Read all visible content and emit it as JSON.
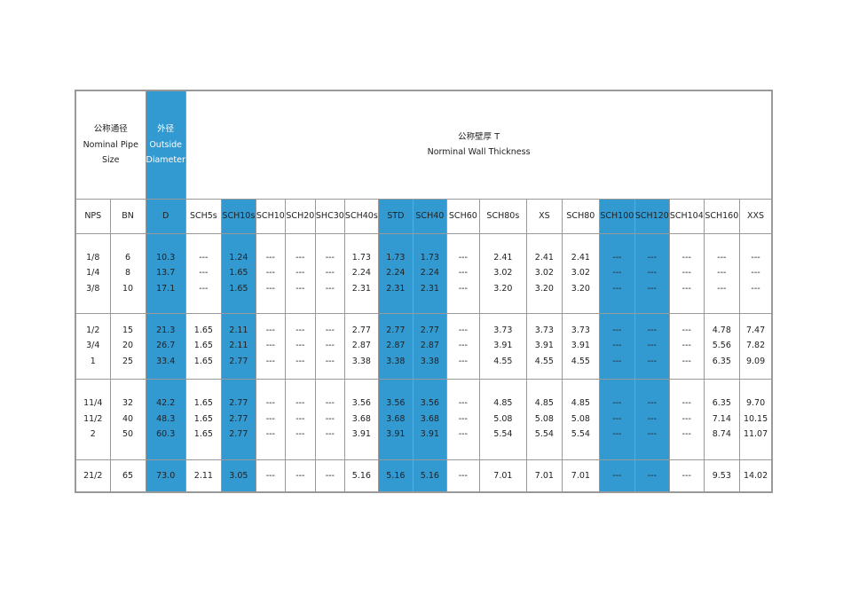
{
  "header": {
    "nominal_size": "公称通径\nNominal Pipe\nSize",
    "outside_diameter": "外径\nOutside\nDiameter",
    "wall_thickness": "公称壁厚 T\nNorminal Wall Thickness"
  },
  "columns": [
    "NPS",
    "BN",
    "D",
    "SCH5s",
    "SCH10s",
    "SCH10",
    "SCH20",
    "SHC30",
    "SCH40s",
    "STD",
    "SCH40",
    "SCH60",
    "SCH80s",
    "XS",
    "SCH80",
    "SCH100",
    "SCH120",
    "SCH104",
    "SCH160",
    "XXS"
  ],
  "rows": [
    [
      "1/8\n1/4\n3/8",
      "6\n8\n10",
      "10.3\n13.7\n17.1",
      "---\n---\n---",
      "1.24\n1.65\n1.65",
      "---\n---\n---",
      "---\n---\n---",
      "---\n---\n---",
      "1.73\n2.24\n2.31",
      "1.73\n2.24\n2.31",
      "1.73\n2.24\n2.31",
      "---\n---\n---",
      "2.41\n3.02\n3.20",
      "2.41\n3.02\n3.20",
      "2.41\n3.02\n3.20",
      "---\n---\n---",
      "---\n---\n---",
      "---\n---\n---",
      "---\n---\n---",
      "---\n---\n---"
    ],
    [
      "1/2\n3/4\n1",
      "15\n20\n25",
      "21.3\n26.7\n33.4",
      "1.65\n1.65\n1.65",
      "2.11\n2.11\n2.77",
      "---\n---\n---",
      "---\n---\n---",
      "---\n---\n---",
      "2.77\n2.87\n3.38",
      "2.77\n2.87\n3.38",
      "2.77\n2.87\n3.38",
      "---\n---\n---",
      "3.73\n3.91\n4.55",
      "3.73\n3.91\n4.55",
      "3.73\n3.91\n4.55",
      "---\n---\n---",
      "---\n---\n---",
      "---\n---\n---",
      "4.78\n5.56\n6.35",
      "7.47\n7.82\n9.09"
    ],
    [
      "11/4\n11/2\n2",
      "32\n40\n50",
      "42.2\n48.3\n60.3",
      "1.65\n1.65\n1.65",
      "2.77\n2.77\n2.77",
      "---\n---\n---",
      "---\n---\n---",
      "---\n---\n---",
      "3.56\n3.68\n3.91",
      "3.56\n3.68\n3.91",
      "3.56\n3.68\n3.91",
      "---\n---\n---",
      "4.85\n5.08\n5.54",
      "4.85\n5.08\n5.54",
      "4.85\n5.08\n5.54",
      "---\n---\n---",
      "---\n---\n---",
      "---\n---\n---",
      "6.35\n7.14\n8.74",
      "9.70\n10.15\n11.07"
    ],
    [
      "21/2",
      "65",
      "73.0",
      "2.11",
      "3.05",
      "---",
      "---",
      "---",
      "5.16",
      "5.16",
      "5.16",
      "---",
      "7.01",
      "7.01",
      "7.01",
      "---",
      "---",
      "---",
      "9.53",
      "14.02"
    ]
  ]
}
